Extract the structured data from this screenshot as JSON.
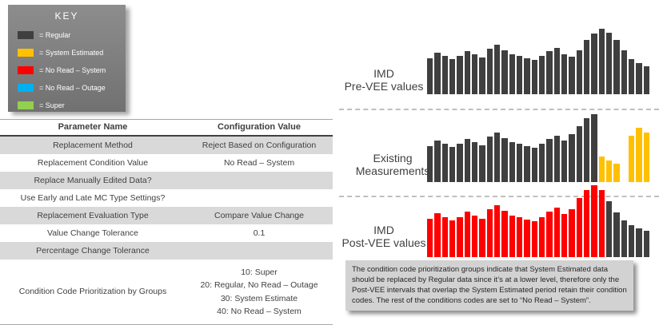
{
  "colors": {
    "regular": "#3f3f3f",
    "system_estimated": "#ffc000",
    "no_read_system": "#ff0000",
    "no_read_outage": "#00b0f0",
    "super": "#92d050"
  },
  "key": {
    "title": "KEY",
    "items": [
      {
        "label": "= Regular",
        "color": "#3f3f3f"
      },
      {
        "label": "= System Estimated",
        "color": "#ffc000"
      },
      {
        "label": "= No Read – System",
        "color": "#ff0000"
      },
      {
        "label": "= No Read – Outage",
        "color": "#00b0f0"
      },
      {
        "label": "= Super",
        "color": "#92d050"
      }
    ]
  },
  "table": {
    "headers": [
      "Parameter Name",
      "Configuration Value"
    ],
    "rows": [
      [
        "Replacement Method",
        "Reject Based on Configuration"
      ],
      [
        "Replacement Condition Value",
        "No Read – System"
      ],
      [
        "Replace Manually Edited Data?",
        ""
      ],
      [
        "Use Early and Late MC Type Settings?",
        ""
      ],
      [
        "Replacement Evaluation Type",
        "Compare Value Change"
      ],
      [
        "Value Change Tolerance",
        "0.1"
      ],
      [
        "Percentage Change Tolerance",
        ""
      ],
      [
        "Condition Code Prioritization by Groups",
        [
          "10: Super",
          "20: Regular, No Read – Outage",
          "30: System Estimate",
          "40: No Read – System"
        ]
      ]
    ]
  },
  "chart_data": [
    {
      "type": "bar",
      "title": "IMD Pre-VEE values",
      "label_lines": [
        "IMD",
        "Pre-VEE values"
      ],
      "segments": [
        {
          "color": "regular",
          "legend": "Regular",
          "heights": [
            45,
            52,
            48,
            44,
            48,
            54,
            50,
            46,
            57,
            62,
            55,
            50,
            48,
            45,
            43,
            48,
            54,
            58,
            50,
            47,
            55,
            68,
            76,
            82,
            77,
            68,
            55,
            44,
            39,
            35
          ]
        }
      ]
    },
    {
      "type": "bar",
      "title": "Existing Measurements",
      "label_lines": [
        "Existing",
        "Measurements"
      ],
      "segments": [
        {
          "color": "regular",
          "legend": "Regular",
          "heights": [
            45,
            52,
            48,
            44,
            48,
            54,
            50,
            46,
            57,
            62,
            55,
            50,
            48,
            45,
            43,
            48,
            54,
            58,
            52,
            60,
            70,
            80,
            85
          ]
        },
        {
          "color": "system_estimated",
          "legend": "System Estimated",
          "heights": [
            32,
            27,
            23,
            0,
            58,
            68,
            62
          ]
        }
      ]
    },
    {
      "type": "bar",
      "title": "IMD Post-VEE values",
      "label_lines": [
        "IMD",
        "Post-VEE values"
      ],
      "segments": [
        {
          "color": "no_read_system",
          "legend": "No Read – System",
          "heights": [
            48,
            55,
            50,
            46,
            50,
            57,
            52,
            48,
            60,
            65,
            58,
            52,
            50,
            47,
            45,
            50,
            57,
            62,
            54,
            60,
            74,
            84,
            90,
            84
          ]
        },
        {
          "color": "regular",
          "legend": "Regular",
          "heights": [
            70,
            56,
            46,
            40,
            36,
            33
          ]
        }
      ]
    }
  ],
  "callout": {
    "text": "The condition code prioritization groups indicate that System Estimated data should be replaced by Regular data since it’s at a lower level, therefore only the Post-VEE intervals that overlap the System Estimated period retain their condition codes.  The rest of the conditions codes are set to “No Read – System”."
  }
}
